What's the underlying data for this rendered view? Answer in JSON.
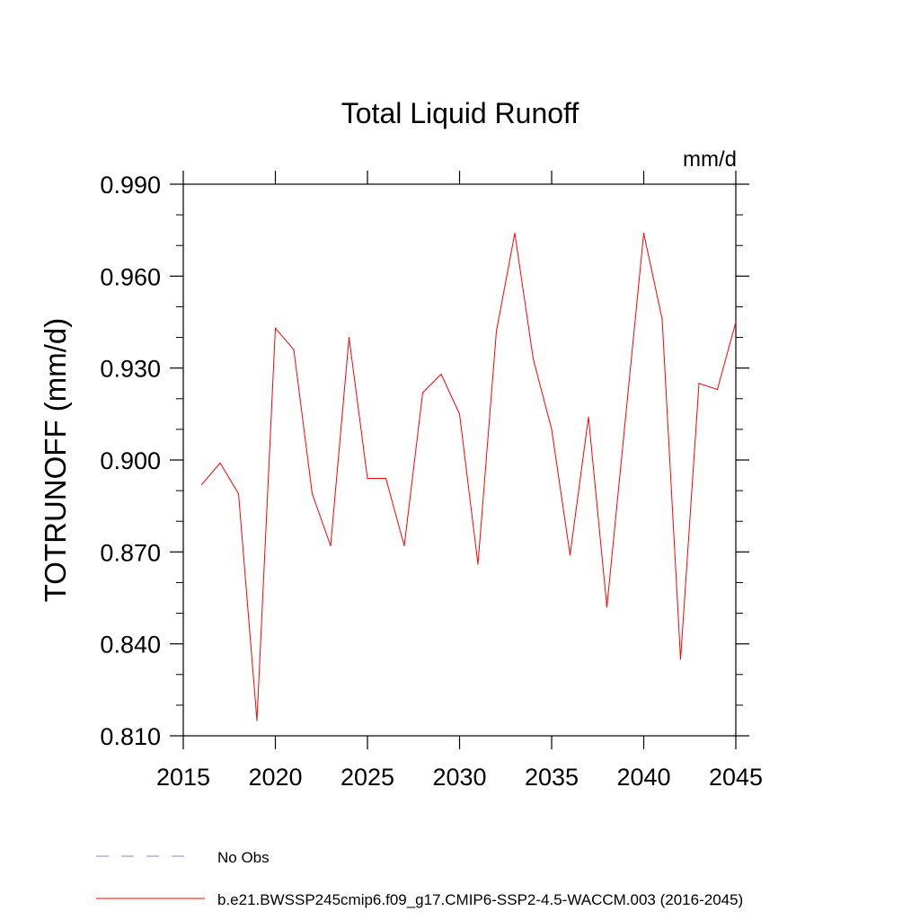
{
  "chart_data": {
    "type": "line",
    "title": "Total Liquid Runoff",
    "units_label": "mm/d",
    "ylabel": "TOTRUNOFF  (mm/d)",
    "xlabel": "",
    "xlim": [
      2015,
      2045
    ],
    "ylim": [
      0.81,
      0.99
    ],
    "x_ticks": [
      2015,
      2020,
      2025,
      2030,
      2035,
      2040,
      2045
    ],
    "y_ticks": [
      0.81,
      0.84,
      0.87,
      0.9,
      0.93,
      0.96,
      0.99
    ],
    "y_tick_labels": [
      "0.810",
      "0.840",
      "0.870",
      "0.900",
      "0.930",
      "0.960",
      "0.990"
    ],
    "grid": false,
    "legend_position": "bottom",
    "series": [
      {
        "name": "b.e21.BWSSP245cmip6.f09_g17.CMIP6-SSP2-4.5-WACCM.003 (2016-2045)",
        "color": "#ff0000",
        "x": [
          2016,
          2017,
          2018,
          2019,
          2020,
          2021,
          2022,
          2023,
          2024,
          2025,
          2026,
          2027,
          2028,
          2029,
          2030,
          2031,
          2032,
          2033,
          2034,
          2035,
          2036,
          2037,
          2038,
          2039,
          2040,
          2041,
          2042,
          2043,
          2044,
          2045
        ],
        "values": [
          0.892,
          0.899,
          0.889,
          0.815,
          0.943,
          0.936,
          0.889,
          0.872,
          0.94,
          0.894,
          0.894,
          0.872,
          0.922,
          0.928,
          0.915,
          0.866,
          0.942,
          0.974,
          0.933,
          0.91,
          0.869,
          0.914,
          0.852,
          0.913,
          0.974,
          0.946,
          0.835,
          0.925,
          0.923,
          0.945
        ]
      }
    ],
    "legend": [
      {
        "label": "No Obs",
        "style": "dashed",
        "color": "#8a80c0"
      },
      {
        "label": "b.e21.BWSSP245cmip6.f09_g17.CMIP6-SSP2-4.5-WACCM.003 (2016-2045)",
        "style": "solid",
        "color": "#ff0000"
      }
    ]
  }
}
